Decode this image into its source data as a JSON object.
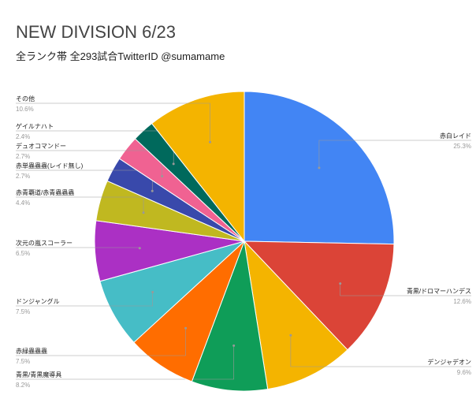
{
  "chart_data": {
    "type": "pie",
    "title": "NEW DIVISION 6/23",
    "subtitle": "全ランク帯 全293試合TwitterID @sumamame",
    "categories": [
      "赤白レイド",
      "青黒/ドロマーハンデス",
      "デンジャデオン",
      "青黒/青黒魔導具",
      "赤緑蟲蟲蟲",
      "ドンジャングル",
      "次元の嵐スコーラー",
      "赤青覇道/赤青蟲蟲蟲",
      "赤単蟲蟲蟲(レイド無し)",
      "デュオコマンドー",
      "ゲイルナハト",
      "その他"
    ],
    "values": [
      25.3,
      12.6,
      9.6,
      8.2,
      7.5,
      7.5,
      6.5,
      4.4,
      2.7,
      2.7,
      2.4,
      10.6
    ],
    "value_labels": [
      "25.3%",
      "12.6%",
      "9.6%",
      "8.2%",
      "7.5%",
      "7.5%",
      "6.5%",
      "4.4%",
      "2.7%",
      "2.7%",
      "2.4%",
      "10.6%"
    ],
    "colors": [
      "#4285f4",
      "#db4437",
      "#f4b400",
      "#0f9d58",
      "#ff6d00",
      "#46bdc6",
      "#ab30c4",
      "#c0b820",
      "#3949ab",
      "#f06292",
      "#00695c",
      "#f4b400"
    ]
  }
}
